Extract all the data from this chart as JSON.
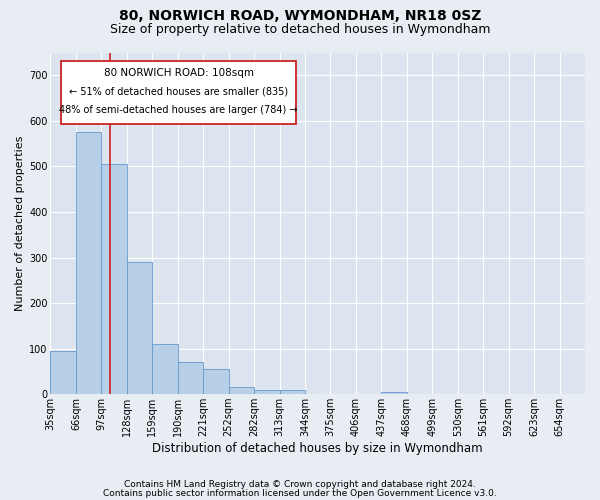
{
  "title": "80, NORWICH ROAD, WYMONDHAM, NR18 0SZ",
  "subtitle": "Size of property relative to detached houses in Wymondham",
  "xlabel": "Distribution of detached houses by size in Wymondham",
  "ylabel": "Number of detached properties",
  "footnote1": "Contains HM Land Registry data © Crown copyright and database right 2024.",
  "footnote2": "Contains public sector information licensed under the Open Government Licence v3.0.",
  "categories": [
    "35sqm",
    "66sqm",
    "97sqm",
    "128sqm",
    "159sqm",
    "190sqm",
    "221sqm",
    "252sqm",
    "282sqm",
    "313sqm",
    "344sqm",
    "375sqm",
    "406sqm",
    "437sqm",
    "468sqm",
    "499sqm",
    "530sqm",
    "561sqm",
    "592sqm",
    "623sqm",
    "654sqm"
  ],
  "bar_values": [
    95,
    575,
    505,
    290,
    110,
    70,
    55,
    15,
    10,
    10,
    0,
    0,
    0,
    5,
    0,
    0,
    0,
    0,
    0,
    0,
    0
  ],
  "bar_color": "#b8cfe8",
  "bar_edge_color": "#6699cc",
  "red_line_color": "#cc2222",
  "annotation_box_text": [
    "80 NORWICH ROAD: 108sqm",
    "← 51% of detached houses are smaller (835)",
    "48% of semi-detached houses are larger (784) →"
  ],
  "ylim": [
    0,
    750
  ],
  "yticks": [
    0,
    100,
    200,
    300,
    400,
    500,
    600,
    700
  ],
  "bg_color": "#e8edf4",
  "plot_bg_color": "#dce4ef",
  "grid_color": "#ffffff",
  "title_fontsize": 10,
  "subtitle_fontsize": 9,
  "xlabel_fontsize": 8.5,
  "ylabel_fontsize": 8,
  "tick_fontsize": 7,
  "footnote_fontsize": 6.5
}
